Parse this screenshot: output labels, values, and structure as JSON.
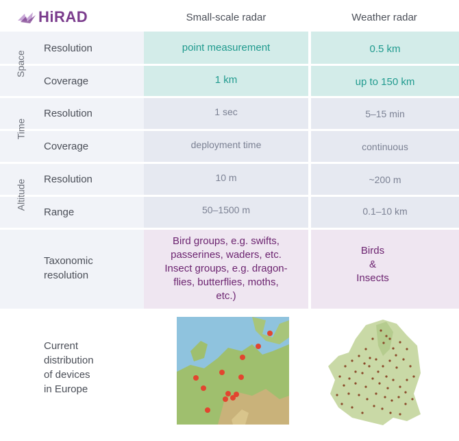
{
  "logo": {
    "text": "HiRAD"
  },
  "headers": {
    "small": "Small-scale radar",
    "weather": "Weather radar"
  },
  "groups": {
    "space": "Space",
    "time": "Time",
    "altitude": "Altitude"
  },
  "rows": [
    {
      "label": "Resolution",
      "small": "point measurement",
      "weather": "0.5 km"
    },
    {
      "label": "Coverage",
      "small": "1 km",
      "weather": "up to 150 km"
    },
    {
      "label": "Resolution",
      "small": "1 sec",
      "weather": "5–15 min"
    },
    {
      "label": "Coverage",
      "small": "deployment time",
      "weather": "continuous"
    },
    {
      "label": "Resolution",
      "small": "10 m",
      "weather": "~200 m"
    },
    {
      "label": "Range",
      "small": "50–1500 m",
      "weather": "0.1–10 km"
    }
  ],
  "taxonomic": {
    "label": [
      "Taxonomic",
      "resolution"
    ],
    "small": [
      "Bird groups, e.g. swifts,",
      "passerines, waders, etc.",
      "Insect groups, e.g. dragon-",
      "flies, butterflies, moths,",
      "etc.)"
    ],
    "weather": [
      "Birds",
      "&",
      "Insects"
    ]
  },
  "distribution": {
    "label": [
      "Current",
      "distribution",
      "of devices",
      "in Europe"
    ]
  },
  "colors": {
    "teal_row": "#d3ece9",
    "grey_row": "#eaedf4",
    "purple_row": "#efe6f1",
    "teal_text": "#1f9a8e",
    "purple_text": "#6c2470"
  }
}
